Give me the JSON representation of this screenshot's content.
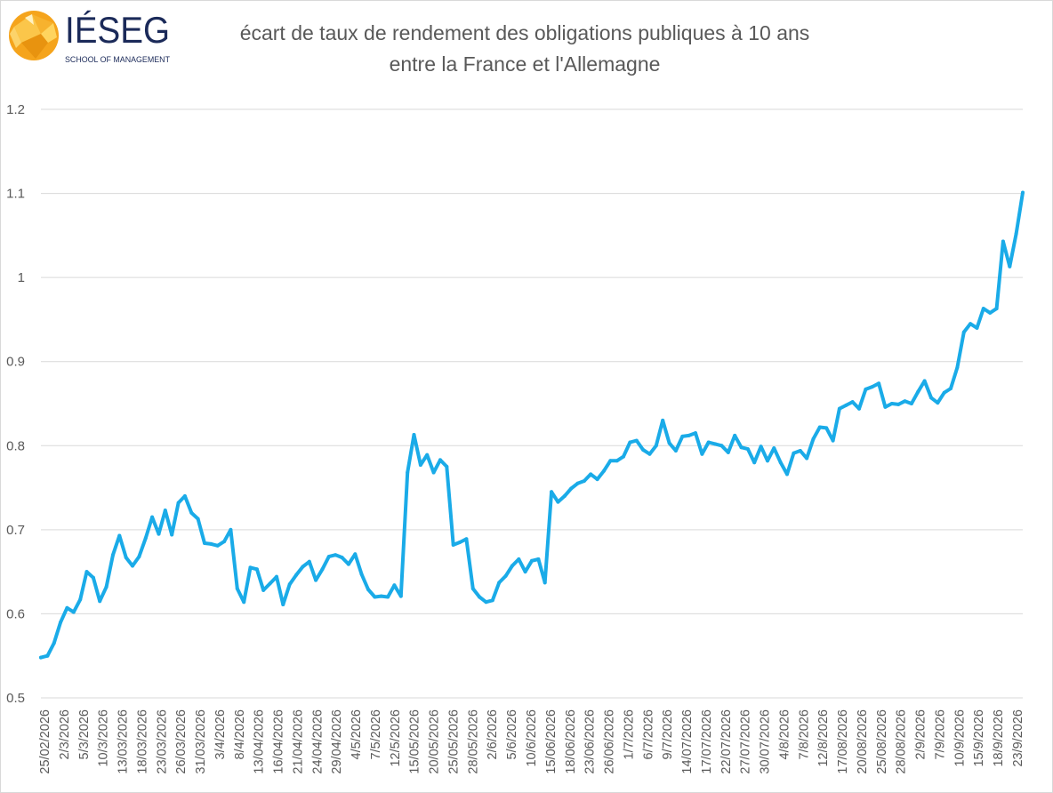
{
  "header": {
    "logo_name": "IÉSEG",
    "logo_tagline": "SCHOOL OF MANAGEMENT"
  },
  "colors": {
    "line": "#1aabe8",
    "grid": "#d9d9d9",
    "text": "#595959",
    "logo_orange": "#f5a41c"
  },
  "chart_data": {
    "type": "line",
    "title": [
      "écart de taux de rendement des obligations publiques à 10 ans",
      "entre la France et l'Allemagne"
    ],
    "xlabel": "",
    "ylabel": "",
    "ylim": [
      0.5,
      1.2
    ],
    "yticks": [
      0.5,
      0.6,
      0.7,
      0.8,
      0.9,
      1,
      1.1,
      1.2
    ],
    "grid": "horizontal",
    "legend": "none",
    "x_tick_labels": [
      "25/02/2026",
      "2/3/2026",
      "5/3/2026",
      "10/3/2026",
      "13/03/2026",
      "18/03/2026",
      "23/03/2026",
      "26/03/2026",
      "31/03/2026",
      "3/4/2026",
      "8/4/2026",
      "13/04/2026",
      "16/04/2026",
      "21/04/2026",
      "24/04/2026",
      "29/04/2026",
      "4/5/2026",
      "7/5/2026",
      "12/5/2026",
      "15/05/2026",
      "20/05/2026",
      "25/05/2026",
      "28/05/2026",
      "2/6/2026",
      "5/6/2026",
      "10/6/2026",
      "15/06/2026",
      "18/06/2026",
      "23/06/2026",
      "26/06/2026",
      "1/7/2026",
      "6/7/2026",
      "9/7/2026",
      "14/07/2026",
      "17/07/2026",
      "22/07/2026",
      "27/07/2026",
      "30/07/2026",
      "4/8/2026",
      "7/8/2026",
      "12/8/2026",
      "17/08/2026",
      "20/08/2026",
      "25/08/2026",
      "28/08/2026",
      "2/9/2026",
      "7/9/2026",
      "10/9/2026",
      "15/9/2026",
      "18/9/2026",
      "23/9/2026"
    ],
    "series": [
      {
        "values": [
          0.548,
          0.55,
          0.565,
          0.59,
          0.607,
          0.602,
          0.617,
          0.65,
          0.643,
          0.615,
          0.632,
          0.67,
          0.693,
          0.667,
          0.657,
          0.668,
          0.69,
          0.715,
          0.695,
          0.723,
          0.694,
          0.732,
          0.74,
          0.72,
          0.713,
          0.684,
          0.683,
          0.681,
          0.686,
          0.7,
          0.63,
          0.614,
          0.655,
          0.653,
          0.628,
          0.636,
          0.644,
          0.611,
          0.635,
          0.646,
          0.656,
          0.662,
          0.64,
          0.653,
          0.668,
          0.67,
          0.667,
          0.659,
          0.671,
          0.647,
          0.629,
          0.62,
          0.621,
          0.62,
          0.634,
          0.621,
          0.768,
          0.813,
          0.777,
          0.789,
          0.768,
          0.783,
          0.775,
          0.682,
          0.685,
          0.689,
          0.63,
          0.62,
          0.614,
          0.616,
          0.637,
          0.645,
          0.657,
          0.665,
          0.65,
          0.663,
          0.665,
          0.637,
          0.745,
          0.733,
          0.74,
          0.749,
          0.755,
          0.758,
          0.766,
          0.76,
          0.77,
          0.782,
          0.782,
          0.787,
          0.804,
          0.806,
          0.795,
          0.79,
          0.8,
          0.83,
          0.803,
          0.794,
          0.811,
          0.812,
          0.815,
          0.79,
          0.804,
          0.802,
          0.8,
          0.792,
          0.812,
          0.798,
          0.796,
          0.78,
          0.799,
          0.782,
          0.797,
          0.78,
          0.766,
          0.791,
          0.794,
          0.785,
          0.808,
          0.822,
          0.821,
          0.806,
          0.844,
          0.848,
          0.852,
          0.844,
          0.867,
          0.87,
          0.874,
          0.846,
          0.85,
          0.849,
          0.853,
          0.85,
          0.864,
          0.877,
          0.857,
          0.851,
          0.863,
          0.868,
          0.893,
          0.935,
          0.945,
          0.94,
          0.963,
          0.958,
          0.963,
          1.043,
          1.013,
          1.052,
          1.101
        ]
      }
    ]
  }
}
